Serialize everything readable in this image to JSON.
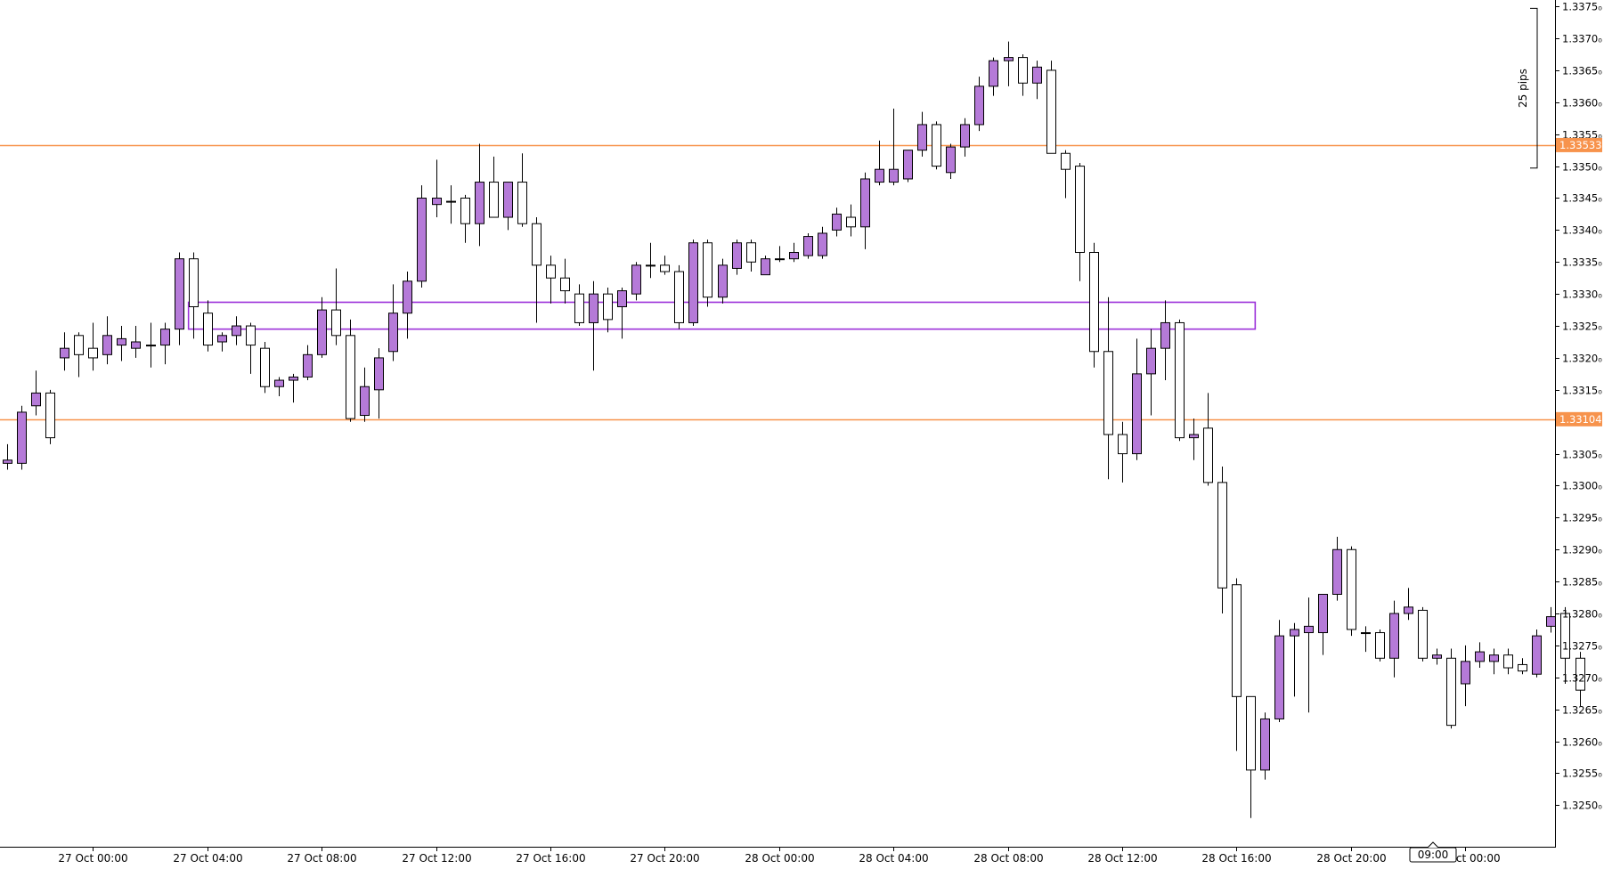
{
  "chart_data": {
    "type": "candlestick",
    "ylim": [
      1.32435,
      1.3376
    ],
    "y_ticks": [
      {
        "value": 1.3375,
        "label": "1.3375₀"
      },
      {
        "value": 1.337,
        "label": "1.3370₀"
      },
      {
        "value": 1.3365,
        "label": "1.3365₀"
      },
      {
        "value": 1.336,
        "label": "1.3360₀"
      },
      {
        "value": 1.3355,
        "label": "1.3355₀"
      },
      {
        "value": 1.335,
        "label": "1.3350₀"
      },
      {
        "value": 1.3345,
        "label": "1.3345₀"
      },
      {
        "value": 1.334,
        "label": "1.3340₀"
      },
      {
        "value": 1.3335,
        "label": "1.3335₀"
      },
      {
        "value": 1.333,
        "label": "1.3330₀"
      },
      {
        "value": 1.3325,
        "label": "1.3325₀"
      },
      {
        "value": 1.332,
        "label": "1.3320₀"
      },
      {
        "value": 1.3315,
        "label": "1.3315₀"
      },
      {
        "value": 1.331,
        "label": "1.3310₀"
      },
      {
        "value": 1.3305,
        "label": "1.3305₀"
      },
      {
        "value": 1.33,
        "label": "1.3300₀"
      },
      {
        "value": 1.3295,
        "label": "1.3295₀"
      },
      {
        "value": 1.329,
        "label": "1.3290₀"
      },
      {
        "value": 1.3285,
        "label": "1.3285₀"
      },
      {
        "value": 1.328,
        "label": "1.3280₀"
      },
      {
        "value": 1.3275,
        "label": "1.3275₀"
      },
      {
        "value": 1.327,
        "label": "1.3270₀"
      },
      {
        "value": 1.3265,
        "label": "1.3265₀"
      },
      {
        "value": 1.326,
        "label": "1.3260₀"
      },
      {
        "value": 1.3255,
        "label": "1.3255₀"
      },
      {
        "value": 1.325,
        "label": "1.3250₀"
      }
    ],
    "x_ticks": [
      {
        "index": 6,
        "label": "27 Oct 00:00"
      },
      {
        "index": 14,
        "label": "27 Oct 04:00"
      },
      {
        "index": 22,
        "label": "27 Oct 08:00"
      },
      {
        "index": 30,
        "label": "27 Oct 12:00"
      },
      {
        "index": 38,
        "label": "27 Oct 16:00"
      },
      {
        "index": 46,
        "label": "27 Oct 20:00"
      },
      {
        "index": 54,
        "label": "28 Oct 00:00"
      },
      {
        "index": 62,
        "label": "28 Oct 04:00"
      },
      {
        "index": 70,
        "label": "28 Oct 08:00"
      },
      {
        "index": 78,
        "label": "28 Oct 12:00"
      },
      {
        "index": 86,
        "label": "28 Oct 16:00"
      },
      {
        "index": 94,
        "label": "28 Oct 20:00"
      },
      {
        "index": 102,
        "label": "29 Oct 00:00"
      }
    ],
    "crosshair_time": {
      "index": 99.75,
      "label": "09:00"
    },
    "price_lines": [
      {
        "value": 1.33533,
        "label": "1.33533",
        "color": "#f7934c"
      },
      {
        "value": 1.33104,
        "label": "1.33104",
        "color": "#f7934c"
      }
    ],
    "zone": {
      "from_index": 13,
      "to_index": 87,
      "low": 1.33245,
      "high": 1.33287,
      "color": "#9b30d9"
    },
    "measure": {
      "label": "25 pips",
      "from": 1.33497,
      "to": 1.33747
    },
    "colors": {
      "bull": "#b57ad8",
      "bear": "#ffffff",
      "outline": "#000000",
      "price_line": "#f7934c",
      "zone": "#9b30d9"
    },
    "candles": [
      {
        "o": 1.33035,
        "h": 1.33065,
        "l": 1.33025,
        "c": 1.3304
      },
      {
        "o": 1.33035,
        "h": 1.33125,
        "l": 1.33025,
        "c": 1.33115
      },
      {
        "o": 1.33125,
        "h": 1.3318,
        "l": 1.3311,
        "c": 1.33145
      },
      {
        "o": 1.33145,
        "h": 1.3315,
        "l": 1.33065,
        "c": 1.33075
      },
      {
        "o": 1.332,
        "h": 1.3324,
        "l": 1.3318,
        "c": 1.33215
      },
      {
        "o": 1.33235,
        "h": 1.3324,
        "l": 1.3317,
        "c": 1.33205
      },
      {
        "o": 1.33215,
        "h": 1.33255,
        "l": 1.3318,
        "c": 1.332
      },
      {
        "o": 1.33205,
        "h": 1.33265,
        "l": 1.3319,
        "c": 1.33235
      },
      {
        "o": 1.3322,
        "h": 1.3325,
        "l": 1.33195,
        "c": 1.3323
      },
      {
        "o": 1.33215,
        "h": 1.3325,
        "l": 1.332,
        "c": 1.33225
      },
      {
        "o": 1.3322,
        "h": 1.33255,
        "l": 1.33185,
        "c": 1.3322
      },
      {
        "o": 1.3322,
        "h": 1.33255,
        "l": 1.3319,
        "c": 1.33245
      },
      {
        "o": 1.33245,
        "h": 1.33365,
        "l": 1.3322,
        "c": 1.33355
      },
      {
        "o": 1.33355,
        "h": 1.33365,
        "l": 1.3323,
        "c": 1.3328
      },
      {
        "o": 1.3327,
        "h": 1.3329,
        "l": 1.3321,
        "c": 1.3322
      },
      {
        "o": 1.33225,
        "h": 1.3324,
        "l": 1.3321,
        "c": 1.33235
      },
      {
        "o": 1.33235,
        "h": 1.33265,
        "l": 1.3322,
        "c": 1.3325
      },
      {
        "o": 1.3325,
        "h": 1.33255,
        "l": 1.33175,
        "c": 1.3322
      },
      {
        "o": 1.33215,
        "h": 1.33225,
        "l": 1.33145,
        "c": 1.33155
      },
      {
        "o": 1.33155,
        "h": 1.3317,
        "l": 1.3314,
        "c": 1.33165
      },
      {
        "o": 1.33165,
        "h": 1.33175,
        "l": 1.3313,
        "c": 1.3317
      },
      {
        "o": 1.3317,
        "h": 1.3322,
        "l": 1.33165,
        "c": 1.33205
      },
      {
        "o": 1.33205,
        "h": 1.33295,
        "l": 1.332,
        "c": 1.33275
      },
      {
        "o": 1.33275,
        "h": 1.3334,
        "l": 1.3322,
        "c": 1.33235
      },
      {
        "o": 1.33235,
        "h": 1.3326,
        "l": 1.331,
        "c": 1.33105
      },
      {
        "o": 1.3311,
        "h": 1.33185,
        "l": 1.331,
        "c": 1.33155
      },
      {
        "o": 1.3315,
        "h": 1.33215,
        "l": 1.33105,
        "c": 1.332
      },
      {
        "o": 1.3321,
        "h": 1.33315,
        "l": 1.33195,
        "c": 1.3327
      },
      {
        "o": 1.3327,
        "h": 1.33335,
        "l": 1.3323,
        "c": 1.3332
      },
      {
        "o": 1.3332,
        "h": 1.3347,
        "l": 1.3331,
        "c": 1.3345
      },
      {
        "o": 1.3344,
        "h": 1.3351,
        "l": 1.3342,
        "c": 1.3345
      },
      {
        "o": 1.33445,
        "h": 1.3347,
        "l": 1.3341,
        "c": 1.33445
      },
      {
        "o": 1.3345,
        "h": 1.33455,
        "l": 1.3338,
        "c": 1.3341
      },
      {
        "o": 1.3341,
        "h": 1.33535,
        "l": 1.33375,
        "c": 1.33475
      },
      {
        "o": 1.33475,
        "h": 1.33515,
        "l": 1.3342,
        "c": 1.3342
      },
      {
        "o": 1.3342,
        "h": 1.33475,
        "l": 1.334,
        "c": 1.33475
      },
      {
        "o": 1.33475,
        "h": 1.3352,
        "l": 1.33405,
        "c": 1.3341
      },
      {
        "o": 1.3341,
        "h": 1.3342,
        "l": 1.33255,
        "c": 1.33345
      },
      {
        "o": 1.33345,
        "h": 1.3336,
        "l": 1.33285,
        "c": 1.33325
      },
      {
        "o": 1.33325,
        "h": 1.33355,
        "l": 1.33285,
        "c": 1.33305
      },
      {
        "o": 1.333,
        "h": 1.33315,
        "l": 1.3325,
        "c": 1.33255
      },
      {
        "o": 1.33255,
        "h": 1.3332,
        "l": 1.3318,
        "c": 1.333
      },
      {
        "o": 1.333,
        "h": 1.3331,
        "l": 1.3324,
        "c": 1.3326
      },
      {
        "o": 1.3328,
        "h": 1.3331,
        "l": 1.3323,
        "c": 1.33305
      },
      {
        "o": 1.333,
        "h": 1.3335,
        "l": 1.3329,
        "c": 1.33345
      },
      {
        "o": 1.33345,
        "h": 1.3338,
        "l": 1.33325,
        "c": 1.33345
      },
      {
        "o": 1.33345,
        "h": 1.3336,
        "l": 1.3333,
        "c": 1.33335
      },
      {
        "o": 1.33335,
        "h": 1.33345,
        "l": 1.33245,
        "c": 1.33255
      },
      {
        "o": 1.33255,
        "h": 1.33385,
        "l": 1.3325,
        "c": 1.3338
      },
      {
        "o": 1.3338,
        "h": 1.33385,
        "l": 1.3328,
        "c": 1.33295
      },
      {
        "o": 1.33295,
        "h": 1.33355,
        "l": 1.33285,
        "c": 1.33345
      },
      {
        "o": 1.3334,
        "h": 1.33385,
        "l": 1.3333,
        "c": 1.3338
      },
      {
        "o": 1.3338,
        "h": 1.33385,
        "l": 1.33335,
        "c": 1.3335
      },
      {
        "o": 1.3333,
        "h": 1.3336,
        "l": 1.3333,
        "c": 1.33355
      },
      {
        "o": 1.33355,
        "h": 1.33375,
        "l": 1.3335,
        "c": 1.33355
      },
      {
        "o": 1.33355,
        "h": 1.3338,
        "l": 1.3335,
        "c": 1.33365
      },
      {
        "o": 1.3336,
        "h": 1.33395,
        "l": 1.33355,
        "c": 1.3339
      },
      {
        "o": 1.3336,
        "h": 1.33405,
        "l": 1.33355,
        "c": 1.33395
      },
      {
        "o": 1.334,
        "h": 1.33435,
        "l": 1.3339,
        "c": 1.33425
      },
      {
        "o": 1.3342,
        "h": 1.3344,
        "l": 1.3339,
        "c": 1.33405
      },
      {
        "o": 1.33405,
        "h": 1.3349,
        "l": 1.3337,
        "c": 1.3348
      },
      {
        "o": 1.33475,
        "h": 1.3354,
        "l": 1.3347,
        "c": 1.33495
      },
      {
        "o": 1.33475,
        "h": 1.3359,
        "l": 1.3347,
        "c": 1.33495
      },
      {
        "o": 1.3348,
        "h": 1.33525,
        "l": 1.33475,
        "c": 1.33525
      },
      {
        "o": 1.33525,
        "h": 1.33585,
        "l": 1.33515,
        "c": 1.33565
      },
      {
        "o": 1.33565,
        "h": 1.3357,
        "l": 1.33495,
        "c": 1.335
      },
      {
        "o": 1.3349,
        "h": 1.33535,
        "l": 1.3348,
        "c": 1.3353
      },
      {
        "o": 1.3353,
        "h": 1.33575,
        "l": 1.33515,
        "c": 1.33565
      },
      {
        "o": 1.33565,
        "h": 1.3364,
        "l": 1.33555,
        "c": 1.33625
      },
      {
        "o": 1.33625,
        "h": 1.3367,
        "l": 1.3361,
        "c": 1.33665
      },
      {
        "o": 1.33665,
        "h": 1.33695,
        "l": 1.33625,
        "c": 1.3367
      },
      {
        "o": 1.3367,
        "h": 1.33675,
        "l": 1.3361,
        "c": 1.3363
      },
      {
        "o": 1.3363,
        "h": 1.33665,
        "l": 1.33605,
        "c": 1.33655
      },
      {
        "o": 1.3365,
        "h": 1.33665,
        "l": 1.3352,
        "c": 1.3352
      },
      {
        "o": 1.3352,
        "h": 1.33525,
        "l": 1.3345,
        "c": 1.33495
      },
      {
        "o": 1.335,
        "h": 1.33505,
        "l": 1.3332,
        "c": 1.33365
      },
      {
        "o": 1.33365,
        "h": 1.3338,
        "l": 1.33185,
        "c": 1.3321
      },
      {
        "o": 1.3321,
        "h": 1.33295,
        "l": 1.3301,
        "c": 1.3308
      },
      {
        "o": 1.3308,
        "h": 1.331,
        "l": 1.33005,
        "c": 1.3305
      },
      {
        "o": 1.3305,
        "h": 1.3323,
        "l": 1.3304,
        "c": 1.33175
      },
      {
        "o": 1.33175,
        "h": 1.33245,
        "l": 1.3311,
        "c": 1.33215
      },
      {
        "o": 1.33215,
        "h": 1.3329,
        "l": 1.33165,
        "c": 1.33255
      },
      {
        "o": 1.33255,
        "h": 1.3326,
        "l": 1.3307,
        "c": 1.33075
      },
      {
        "o": 1.33075,
        "h": 1.33105,
        "l": 1.3304,
        "c": 1.3308
      },
      {
        "o": 1.3309,
        "h": 1.33145,
        "l": 1.33,
        "c": 1.33005
      },
      {
        "o": 1.33005,
        "h": 1.3303,
        "l": 1.328,
        "c": 1.3284
      },
      {
        "o": 1.32845,
        "h": 1.32855,
        "l": 1.32585,
        "c": 1.3267
      },
      {
        "o": 1.3267,
        "h": 1.3267,
        "l": 1.3248,
        "c": 1.32555
      },
      {
        "o": 1.32555,
        "h": 1.32645,
        "l": 1.3254,
        "c": 1.32635
      },
      {
        "o": 1.32635,
        "h": 1.3279,
        "l": 1.3263,
        "c": 1.32765
      },
      {
        "o": 1.32765,
        "h": 1.32785,
        "l": 1.3267,
        "c": 1.32775
      },
      {
        "o": 1.3277,
        "h": 1.32825,
        "l": 1.32645,
        "c": 1.3278
      },
      {
        "o": 1.3277,
        "h": 1.3283,
        "l": 1.32735,
        "c": 1.3283
      },
      {
        "o": 1.3283,
        "h": 1.3292,
        "l": 1.3282,
        "c": 1.329
      },
      {
        "o": 1.329,
        "h": 1.32905,
        "l": 1.32765,
        "c": 1.32775
      },
      {
        "o": 1.3277,
        "h": 1.3278,
        "l": 1.3274,
        "c": 1.3277
      },
      {
        "o": 1.3277,
        "h": 1.32775,
        "l": 1.32725,
        "c": 1.3273
      },
      {
        "o": 1.3273,
        "h": 1.3282,
        "l": 1.327,
        "c": 1.328
      },
      {
        "o": 1.328,
        "h": 1.3284,
        "l": 1.3279,
        "c": 1.3281
      },
      {
        "o": 1.32805,
        "h": 1.3281,
        "l": 1.32725,
        "c": 1.3273
      },
      {
        "o": 1.3273,
        "h": 1.32745,
        "l": 1.3272,
        "c": 1.32735
      },
      {
        "o": 1.3273,
        "h": 1.32745,
        "l": 1.3262,
        "c": 1.32625
      },
      {
        "o": 1.3269,
        "h": 1.3275,
        "l": 1.32655,
        "c": 1.32725
      },
      {
        "o": 1.32725,
        "h": 1.32755,
        "l": 1.32715,
        "c": 1.3274
      },
      {
        "o": 1.32725,
        "h": 1.32745,
        "l": 1.32705,
        "c": 1.32735
      },
      {
        "o": 1.32735,
        "h": 1.32745,
        "l": 1.32705,
        "c": 1.32715
      },
      {
        "o": 1.3272,
        "h": 1.3273,
        "l": 1.32705,
        "c": 1.3271
      },
      {
        "o": 1.32705,
        "h": 1.32775,
        "l": 1.327,
        "c": 1.32765
      },
      {
        "o": 1.3278,
        "h": 1.3281,
        "l": 1.3277,
        "c": 1.32795
      },
      {
        "o": 1.328,
        "h": 1.3281,
        "l": 1.3269,
        "c": 1.3273
      },
      {
        "o": 1.3273,
        "h": 1.3274,
        "l": 1.32655,
        "c": 1.3268
      }
    ]
  }
}
